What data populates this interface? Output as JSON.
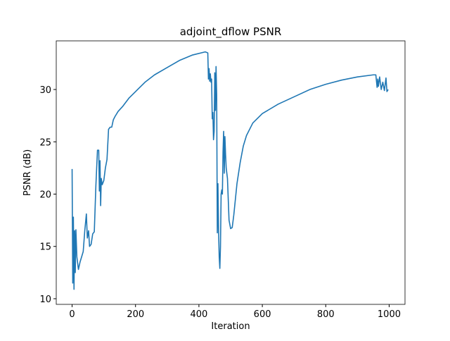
{
  "chart_data": {
    "type": "line",
    "title": "adjoint_dflow PSNR",
    "x_label": "Iteration",
    "y_label": "PSNR (dB)",
    "x": [
      0,
      2,
      4,
      6,
      8,
      10,
      12,
      15,
      20,
      25,
      30,
      35,
      40,
      45,
      48,
      52,
      55,
      60,
      65,
      70,
      75,
      80,
      84,
      86,
      88,
      90,
      92,
      95,
      100,
      105,
      110,
      115,
      120,
      125,
      130,
      135,
      145,
      160,
      180,
      200,
      230,
      260,
      300,
      340,
      380,
      420,
      428,
      430,
      432,
      434,
      436,
      438,
      440,
      442,
      444,
      446,
      448,
      450,
      452,
      454,
      456,
      458,
      460,
      462,
      464,
      466,
      468,
      470,
      472,
      474,
      476,
      478,
      480,
      482,
      484,
      486,
      490,
      495,
      500,
      505,
      510,
      520,
      530,
      540,
      550,
      570,
      600,
      650,
      700,
      750,
      800,
      850,
      900,
      950,
      958,
      962,
      964,
      966,
      970,
      975,
      980,
      985,
      990,
      993,
      997
    ],
    "series": [
      {
        "name": "PSNR",
        "color": "#1f77b4",
        "values": [
          22.4,
          11.5,
          17.8,
          10.9,
          16.5,
          12.5,
          16.6,
          14.0,
          12.8,
          13.5,
          14.0,
          14.5,
          16.5,
          18.1,
          15.8,
          16.5,
          15.0,
          15.2,
          16.2,
          16.4,
          20.8,
          24.2,
          24.2,
          20.3,
          23.2,
          18.9,
          21.5,
          20.9,
          21.3,
          22.5,
          23.3,
          26.2,
          26.4,
          26.4,
          27.1,
          27.4,
          27.9,
          28.4,
          29.2,
          29.8,
          30.7,
          31.4,
          32.1,
          32.8,
          33.3,
          33.6,
          33.5,
          31.0,
          32.0,
          30.8,
          31.5,
          30.7,
          31.0,
          27.2,
          27.8,
          25.2,
          26.0,
          31.6,
          28.0,
          32.2,
          29.5,
          16.3,
          21.0,
          16.5,
          14.0,
          12.9,
          15.0,
          20.0,
          20.4,
          20.0,
          24.0,
          26.0,
          22.0,
          25.5,
          23.8,
          22.5,
          21.5,
          17.5,
          16.7,
          16.8,
          18.0,
          21.0,
          23.0,
          24.6,
          25.6,
          26.8,
          27.7,
          28.6,
          29.3,
          30.0,
          30.5,
          30.9,
          31.2,
          31.4,
          31.4,
          30.2,
          31.0,
          30.3,
          31.2,
          30.0,
          30.7,
          29.9,
          31.1,
          29.8,
          30.0
        ]
      }
    ],
    "xlim": [
      -50,
      1050
    ],
    "ylim": [
      9.46,
      34.65
    ],
    "xticks": [
      0,
      200,
      400,
      600,
      800,
      1000
    ],
    "yticks": [
      10,
      15,
      20,
      25,
      30
    ]
  }
}
